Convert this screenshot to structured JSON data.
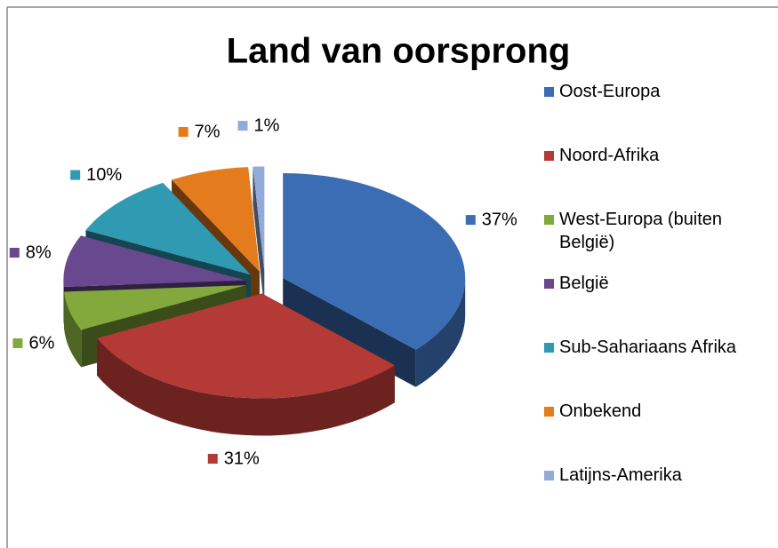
{
  "chart_data": {
    "type": "pie",
    "title": "Land van oorsprong",
    "categories": [
      "Oost-Europa",
      "Noord-Afrika",
      "West-Europa (buiten België)",
      "België",
      "Sub-Sahariaans Afrika",
      "Onbekend",
      "Latijns-Amerika"
    ],
    "values": [
      37,
      31,
      6,
      8,
      10,
      7,
      1
    ],
    "value_labels": [
      "37%",
      "31%",
      "6%",
      "8%",
      "10%",
      "7%",
      "1%"
    ],
    "colors": [
      "#3a6db3",
      "#b43a36",
      "#83a83c",
      "#68488f",
      "#2f9ab2",
      "#e47c1e",
      "#92abd8"
    ],
    "legend": "right"
  }
}
